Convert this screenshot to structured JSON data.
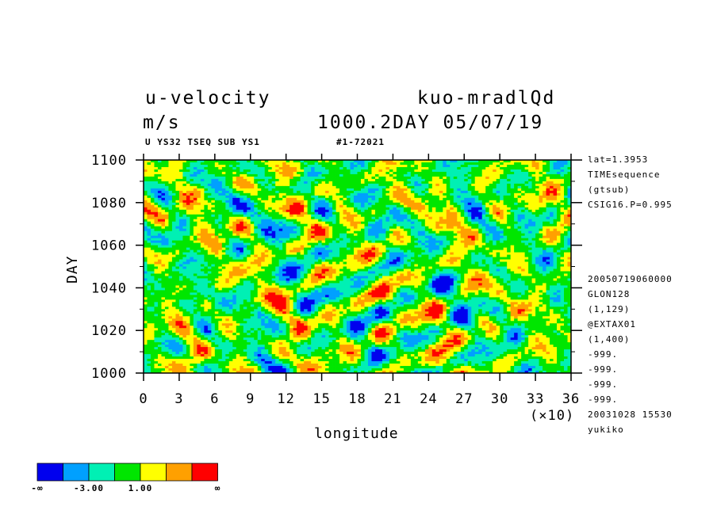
{
  "header": {
    "title_left": "u-velocity",
    "title_right": "kuo-mradlQd",
    "units": "m/s",
    "subtitle_right": "1000.2DAY 05/07/19",
    "subnote_left": "U YS32 TSEQ SUB YS1",
    "subnote_right": "#1-72021"
  },
  "info_top": [
    "lat=1.3953",
    "TIMEsequence",
    "(gtsub)",
    "CSIG16.P=0.995"
  ],
  "info_bottom": [
    "20050719060000",
    "GLON128",
    "(1,129)",
    "@EXTAX01",
    "(1,400)",
    "-999.",
    "-999.",
    "-999.",
    "-999.",
    "20031028  15530",
    "yukiko"
  ],
  "chart_data": {
    "type": "heatmap",
    "xlabel": "longitude",
    "ylabel": "DAY",
    "x_multiplier_label": "(×10)",
    "xlim": [
      0,
      36
    ],
    "ylim": [
      1000,
      1100
    ],
    "x_ticks": [
      "0",
      "3",
      "6",
      "9",
      "12",
      "15",
      "18",
      "21",
      "24",
      "27",
      "30",
      "33",
      "36"
    ],
    "y_ticks": [
      "1000",
      "1020",
      "1040",
      "1060",
      "1080",
      "1100"
    ],
    "colorbar": {
      "colors": [
        "#0000ee",
        "#00a0ff",
        "#00f0b4",
        "#00e600",
        "#ffff00",
        "#ffa000",
        "#ff0000"
      ],
      "labels": [
        "-∞",
        "-3.00",
        "1.00",
        "∞"
      ]
    }
  }
}
